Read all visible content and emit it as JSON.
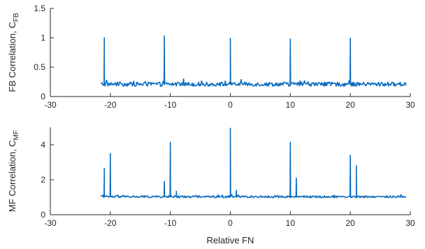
{
  "chart_data": [
    {
      "type": "line",
      "ylabel_main": "FB Correlation, C",
      "ylabel_sub": "FB",
      "xlabel": "",
      "xlim": [
        -30,
        30
      ],
      "ylim": [
        0,
        1.5
      ],
      "xticks": [
        "-30",
        "-20",
        "-10",
        "0",
        "10",
        "20",
        "30"
      ],
      "yticks": [
        "0",
        "0.5",
        "1",
        "1.5"
      ],
      "grid": false,
      "color": "#0b6cbf",
      "series": [
        {
          "x_range": [
            -21.6,
            29.3
          ],
          "baseline": 0.21,
          "noise": 0.035,
          "peaks": [
            {
              "x": -21,
              "y": 1.0
            },
            {
              "x": -11,
              "y": 1.03
            },
            {
              "x": 0,
              "y": 0.99
            },
            {
              "x": 10,
              "y": 0.98
            },
            {
              "x": 20,
              "y": 0.99
            }
          ]
        }
      ]
    },
    {
      "type": "line",
      "ylabel_main": "MF Correlation, C",
      "ylabel_sub": "MF",
      "xlabel": "Relative FN",
      "xlim": [
        -30,
        30
      ],
      "ylim": [
        0,
        5
      ],
      "xticks": [
        "-30",
        "-20",
        "-10",
        "0",
        "10",
        "20",
        "30"
      ],
      "yticks": [
        "0",
        "2",
        "4"
      ],
      "grid": false,
      "color": "#0b6cbf",
      "series": [
        {
          "x_range": [
            -21.6,
            29.3
          ],
          "baseline": 1.03,
          "noise": 0.06,
          "peaks": [
            {
              "x": -21,
              "y": 2.65
            },
            {
              "x": -20,
              "y": 3.5
            },
            {
              "x": -11,
              "y": 1.9
            },
            {
              "x": -10,
              "y": 4.15
            },
            {
              "x": -9,
              "y": 1.35
            },
            {
              "x": 0,
              "y": 4.95
            },
            {
              "x": 1,
              "y": 1.4
            },
            {
              "x": 10,
              "y": 4.15
            },
            {
              "x": 11,
              "y": 2.1
            },
            {
              "x": 20,
              "y": 3.4
            },
            {
              "x": 21,
              "y": 2.8
            }
          ]
        }
      ]
    }
  ]
}
